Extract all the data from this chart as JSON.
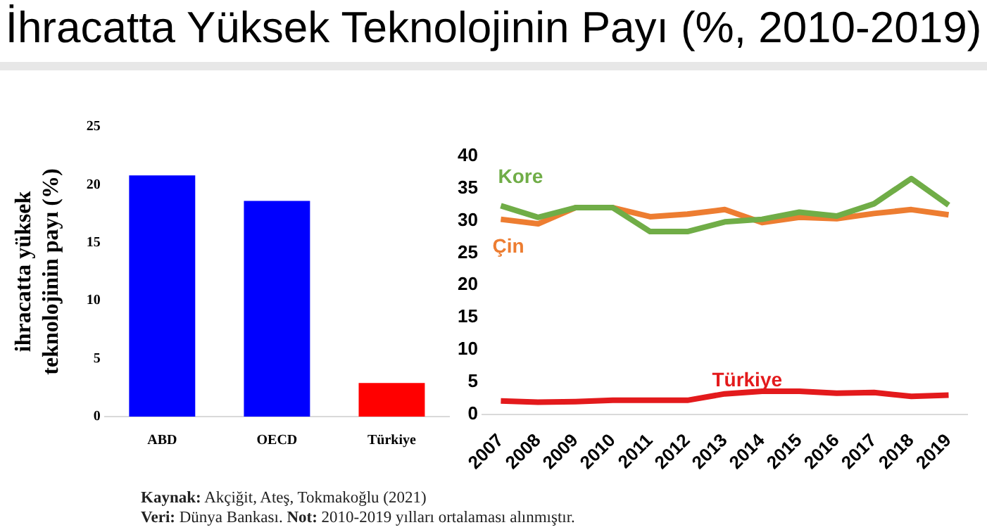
{
  "chart_data": [
    {
      "type": "bar",
      "title": "İhracatta Yüksek Teknolojinin Payı (%, 2010-2019)",
      "ylabel": "ihracatta yüksek teknolojinin payı (%)",
      "categories": [
        "ABD",
        "OECD",
        "Türkiye"
      ],
      "values": [
        20.8,
        18.6,
        2.9
      ],
      "colors": [
        "#0000ff",
        "#0000ff",
        "#ff0000"
      ],
      "ylim": [
        0,
        25
      ],
      "yticks": [
        0,
        5,
        10,
        15,
        20,
        25
      ],
      "grid": false,
      "legend": false,
      "annotations": [
        "Kaynak: Akçiğit, Ateş, Tokmakoğlu (2021)",
        "Veri: Dünya Bankası. Not: 2010-2019 yılları ortalaması alınmıştır."
      ]
    },
    {
      "type": "line",
      "categories": [
        "2007",
        "2008",
        "2009",
        "2010",
        "2011",
        "2012",
        "2013",
        "2014",
        "2015",
        "2016",
        "2017",
        "2018",
        "2019"
      ],
      "series": [
        {
          "name": "Kore",
          "color": "#70ad47",
          "values": [
            32.3,
            30.5,
            32,
            32,
            28.3,
            28.3,
            29.8,
            30.2,
            31.3,
            30.7,
            32.6,
            36.5,
            32.4
          ]
        },
        {
          "name": "Çin",
          "color": "#ed7d31",
          "values": [
            30.2,
            29.5,
            32,
            32,
            30.6,
            31,
            31.7,
            29.7,
            30.5,
            30.3,
            31.1,
            31.7,
            30.9
          ]
        },
        {
          "name": "Türkiye",
          "color": "#e31a1c",
          "values": [
            2.1,
            1.9,
            2.0,
            2.2,
            2.2,
            2.2,
            3.2,
            3.6,
            3.6,
            3.3,
            3.4,
            2.8,
            3.0
          ]
        }
      ],
      "ylim": [
        0,
        40
      ],
      "yticks": [
        0,
        5,
        10,
        15,
        20,
        25,
        30,
        35,
        40
      ],
      "grid": false,
      "legend": false,
      "marker": "none",
      "line_style": "solid"
    }
  ]
}
